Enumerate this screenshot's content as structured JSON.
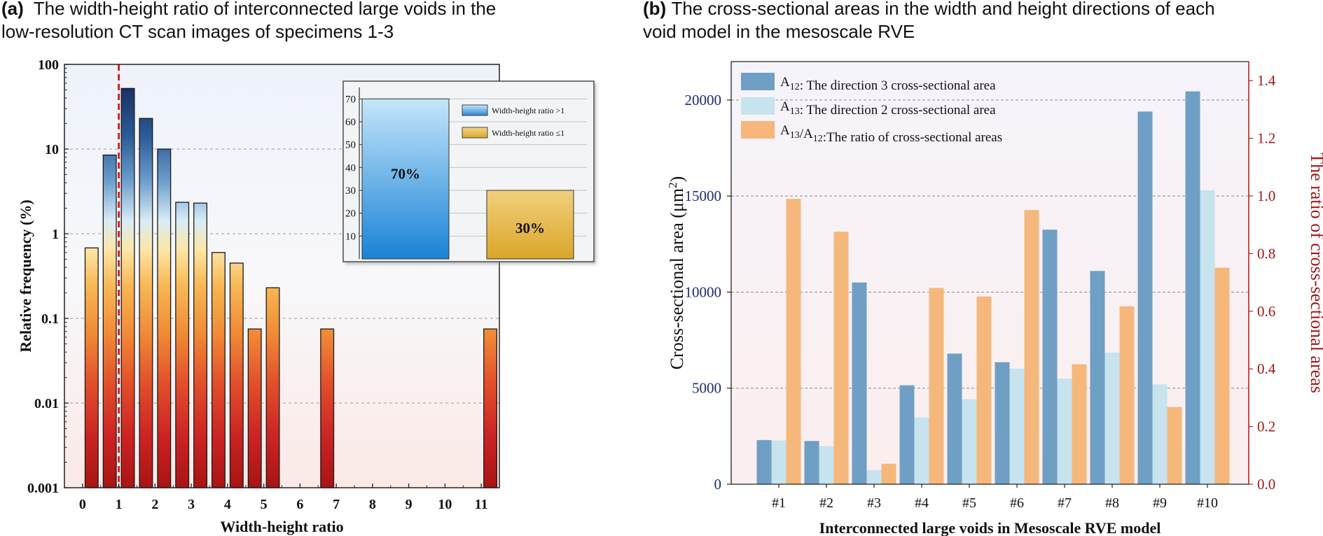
{
  "panel_a": {
    "tag": "(a)",
    "title_line1": "The width-height ratio of interconnected large voids in the",
    "title_line2": "low-resolution CT scan images of specimens 1-3"
  },
  "panel_b": {
    "tag": "(b)",
    "title_line1": "The cross-sectional areas in the width and height directions of each",
    "title_line2": "void model in the mesoscale RVE"
  },
  "chart_data": [
    {
      "type": "bar",
      "yscale": "log",
      "ylim": [
        0.001,
        100
      ],
      "xlim": [
        -0.5,
        11.5
      ],
      "xlabel": "Width-height ratio",
      "ylabel": "Relative frequency (%)",
      "yticks": [
        0.001,
        0.01,
        0.1,
        1,
        10,
        100
      ],
      "ytick_labels": [
        "0.001",
        "0.01",
        "0.1",
        "1",
        "10",
        "100"
      ],
      "xticks": [
        0,
        1,
        2,
        3,
        4,
        5,
        6,
        7,
        8,
        9,
        10,
        11
      ],
      "xtick_labels": [
        "0",
        "1",
        "2",
        "3",
        "4",
        "5",
        "6",
        "7",
        "8",
        "9",
        "10",
        "11"
      ],
      "reference_line_x": 1,
      "x": [
        0.25,
        0.75,
        1.25,
        1.75,
        2.25,
        2.75,
        3.25,
        3.75,
        4.25,
        4.75,
        5.25,
        6.75,
        11.25
      ],
      "values": [
        0.68,
        8.5,
        52,
        23,
        10,
        2.35,
        2.3,
        0.6,
        0.45,
        0.075,
        0.23,
        0.075,
        0.075
      ],
      "grid": true,
      "inset": {
        "type": "bar",
        "categories": [
          "Width-height ratio >1",
          "Width-height ratio ≤1"
        ],
        "values": [
          70,
          30
        ],
        "labels": [
          "70%",
          "30%"
        ],
        "ylim": [
          0,
          75
        ],
        "yticks": [
          10,
          20,
          30,
          40,
          50,
          60,
          70
        ],
        "legend_position": "top-right"
      }
    },
    {
      "type": "bar",
      "categories": [
        "#1",
        "#2",
        "#3",
        "#4",
        "#5",
        "#6",
        "#7",
        "#8",
        "#9",
        "#10"
      ],
      "xlabel": "Interconnected large voids in Mesoscale RVE model",
      "ylabel": "Cross-sectional area (μm²)",
      "ylabel_right": "The ratio of cross-sectional areas",
      "ylim": [
        0,
        22000
      ],
      "ylim_right": [
        0,
        1.466
      ],
      "yticks": [
        0,
        5000,
        10000,
        15000,
        20000
      ],
      "yticks_right": [
        0.0,
        0.2,
        0.4,
        0.6,
        0.8,
        1.0,
        1.2,
        1.4
      ],
      "ytick_labels_right": [
        "0.0",
        "0.2",
        "0.4",
        "0.6",
        "0.8",
        "1.0",
        "1.2",
        "1.4"
      ],
      "legend_position": "top-left",
      "series": [
        {
          "name": "A12: The direction 3 cross-sectional area",
          "color": "#6f9fc4",
          "axis": "left",
          "values": [
            2300,
            2250,
            10500,
            5150,
            6800,
            6350,
            13250,
            11100,
            19400,
            20450
          ]
        },
        {
          "name": "A13: The direction 2 cross-sectional area",
          "color": "#c6e3ee",
          "axis": "left",
          "values": [
            2280,
            1980,
            730,
            3480,
            4420,
            6020,
            5500,
            6850,
            5200,
            15300
          ]
        },
        {
          "name": "A13/A12:The ratio of cross-sectional areas",
          "color": "#f5b77c",
          "axis": "right",
          "values": [
            0.99,
            0.876,
            0.071,
            0.681,
            0.651,
            0.951,
            0.416,
            0.617,
            0.268,
            0.751
          ]
        }
      ]
    }
  ]
}
